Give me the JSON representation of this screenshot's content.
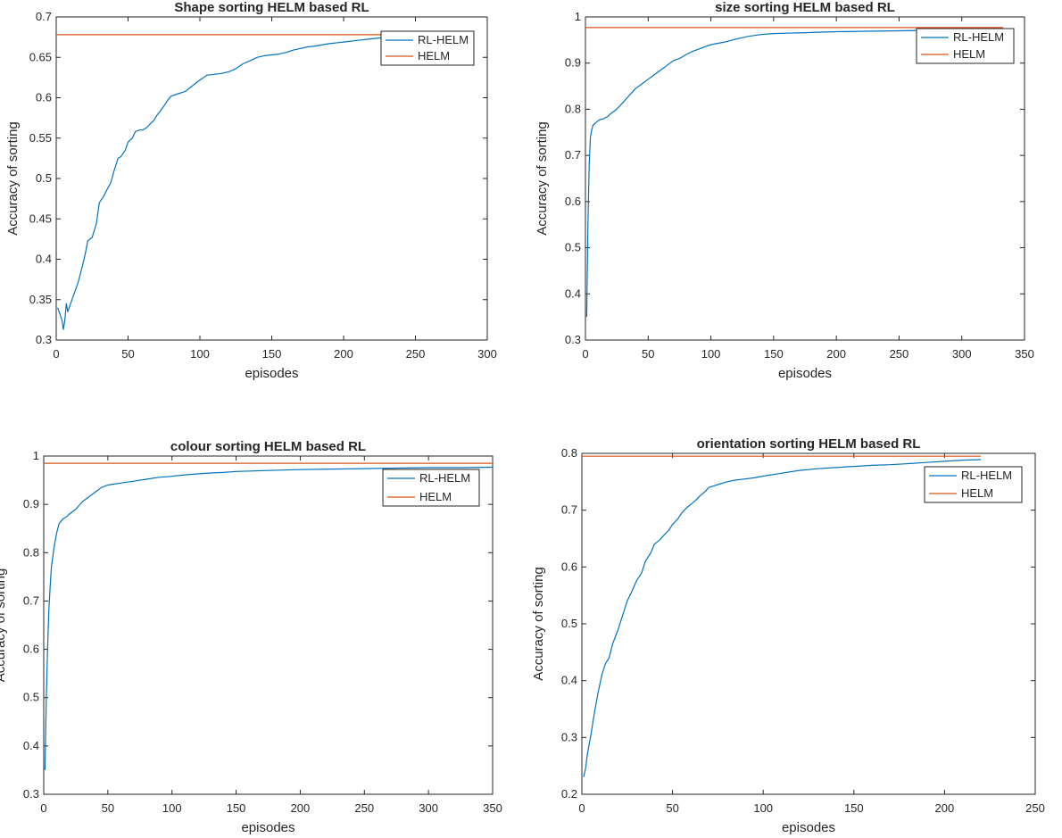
{
  "legend_entries": [
    "RL-HELM",
    "HELM"
  ],
  "colors": {
    "rl_helm": "#0072BD",
    "helm": "#D95319"
  },
  "chart_data": [
    {
      "type": "line",
      "title": "Shape sorting HELM based RL",
      "xlabel": "episodes",
      "ylabel": "Accuracy of sorting",
      "xlim": [
        0,
        300
      ],
      "ylim": [
        0.3,
        0.7
      ],
      "xticks": [
        0,
        50,
        100,
        150,
        200,
        250,
        300
      ],
      "yticks": [
        0.3,
        0.35,
        0.4,
        0.45,
        0.5,
        0.55,
        0.6,
        0.65,
        0.7
      ],
      "grid": false,
      "legend_position": "top-right",
      "series": [
        {
          "name": "RL-HELM",
          "x": [
            1,
            2,
            3,
            4,
            5,
            6,
            7,
            8,
            10,
            12,
            15,
            18,
            20,
            22,
            25,
            28,
            30,
            33,
            35,
            38,
            40,
            43,
            45,
            48,
            50,
            53,
            55,
            58,
            60,
            63,
            65,
            68,
            70,
            73,
            75,
            78,
            80,
            85,
            90,
            95,
            100,
            105,
            110,
            115,
            120,
            125,
            130,
            135,
            140,
            145,
            150,
            155,
            160,
            165,
            170,
            175,
            180,
            190,
            200,
            210,
            220,
            230
          ],
          "y": [
            0.34,
            0.335,
            0.33,
            0.325,
            0.313,
            0.325,
            0.345,
            0.335,
            0.345,
            0.355,
            0.37,
            0.39,
            0.405,
            0.423,
            0.427,
            0.445,
            0.47,
            0.478,
            0.485,
            0.495,
            0.508,
            0.525,
            0.527,
            0.535,
            0.545,
            0.55,
            0.558,
            0.56,
            0.56,
            0.563,
            0.567,
            0.572,
            0.578,
            0.585,
            0.59,
            0.598,
            0.602,
            0.605,
            0.608,
            0.615,
            0.622,
            0.628,
            0.629,
            0.63,
            0.632,
            0.636,
            0.642,
            0.646,
            0.65,
            0.652,
            0.653,
            0.654,
            0.656,
            0.659,
            0.661,
            0.663,
            0.664,
            0.667,
            0.669,
            0.671,
            0.673,
            0.675
          ]
        },
        {
          "name": "HELM",
          "x": [
            0,
            230
          ],
          "y": [
            0.678,
            0.678
          ]
        }
      ]
    },
    {
      "type": "line",
      "title": "size sorting HELM based RL",
      "xlabel": "episodes",
      "ylabel": "Accuracy of sorting",
      "xlim": [
        0,
        350
      ],
      "ylim": [
        0.3,
        1
      ],
      "xticks": [
        0,
        50,
        100,
        150,
        200,
        250,
        300,
        350
      ],
      "yticks": [
        0.3,
        0.4,
        0.5,
        0.6,
        0.7,
        0.8,
        0.9,
        1
      ],
      "grid": false,
      "legend_position": "top-right",
      "series": [
        {
          "name": "RL-HELM",
          "x": [
            1,
            2,
            3,
            4,
            5,
            6,
            8,
            10,
            12,
            15,
            18,
            20,
            25,
            30,
            35,
            40,
            45,
            50,
            55,
            60,
            65,
            70,
            75,
            80,
            85,
            90,
            95,
            100,
            110,
            120,
            130,
            140,
            150,
            175,
            200,
            225,
            250,
            275,
            300,
            333
          ],
          "y": [
            0.35,
            0.55,
            0.68,
            0.74,
            0.755,
            0.765,
            0.77,
            0.775,
            0.778,
            0.78,
            0.785,
            0.79,
            0.8,
            0.815,
            0.83,
            0.845,
            0.855,
            0.865,
            0.875,
            0.885,
            0.895,
            0.905,
            0.91,
            0.918,
            0.925,
            0.93,
            0.935,
            0.94,
            0.945,
            0.952,
            0.958,
            0.962,
            0.964,
            0.966,
            0.968,
            0.969,
            0.97,
            0.971,
            0.972,
            0.972
          ]
        },
        {
          "name": "HELM",
          "x": [
            0,
            333
          ],
          "y": [
            0.977,
            0.977
          ]
        }
      ]
    },
    {
      "type": "line",
      "title": "colour sorting HELM based RL",
      "xlabel": "episodes",
      "ylabel": "Accuracy of sorting",
      "xlim": [
        0,
        350
      ],
      "ylim": [
        0.3,
        1
      ],
      "xticks": [
        0,
        50,
        100,
        150,
        200,
        250,
        300,
        350
      ],
      "yticks": [
        0.3,
        0.4,
        0.5,
        0.6,
        0.7,
        0.8,
        0.9,
        1
      ],
      "grid": false,
      "legend_position": "top-right",
      "series": [
        {
          "name": "RL-HELM",
          "x": [
            1,
            2,
            3,
            4,
            5,
            6,
            8,
            10,
            12,
            15,
            18,
            20,
            25,
            30,
            35,
            40,
            45,
            50,
            55,
            60,
            70,
            80,
            90,
            100,
            110,
            120,
            130,
            140,
            150,
            175,
            200,
            225,
            250,
            275,
            300,
            325,
            350
          ],
          "y": [
            0.35,
            0.5,
            0.6,
            0.68,
            0.73,
            0.77,
            0.81,
            0.84,
            0.86,
            0.87,
            0.875,
            0.88,
            0.89,
            0.905,
            0.915,
            0.925,
            0.935,
            0.94,
            0.942,
            0.944,
            0.948,
            0.952,
            0.956,
            0.958,
            0.961,
            0.963,
            0.965,
            0.966,
            0.968,
            0.97,
            0.972,
            0.973,
            0.974,
            0.975,
            0.976,
            0.976,
            0.977
          ]
        },
        {
          "name": "HELM",
          "x": [
            0,
            350
          ],
          "y": [
            0.985,
            0.985
          ]
        }
      ]
    },
    {
      "type": "line",
      "title": "orientation sorting HELM based RL",
      "xlabel": "episodes",
      "ylabel": "Accuracy of sorting",
      "xlim": [
        0,
        250
      ],
      "ylim": [
        0.2,
        0.8
      ],
      "xticks": [
        0,
        50,
        100,
        150,
        200,
        250
      ],
      "yticks": [
        0.2,
        0.3,
        0.4,
        0.5,
        0.6,
        0.7,
        0.8
      ],
      "grid": false,
      "legend_position": "top-right",
      "series": [
        {
          "name": "RL-HELM",
          "x": [
            1,
            2,
            3,
            5,
            7,
            9,
            11,
            13,
            15,
            17,
            20,
            23,
            25,
            28,
            30,
            33,
            35,
            38,
            40,
            43,
            45,
            48,
            50,
            53,
            55,
            58,
            60,
            63,
            65,
            68,
            70,
            75,
            80,
            85,
            90,
            95,
            100,
            110,
            120,
            130,
            140,
            150,
            160,
            170,
            180,
            190,
            200,
            210,
            220
          ],
          "y": [
            0.23,
            0.245,
            0.27,
            0.305,
            0.345,
            0.38,
            0.41,
            0.43,
            0.44,
            0.465,
            0.49,
            0.52,
            0.54,
            0.56,
            0.575,
            0.59,
            0.61,
            0.625,
            0.64,
            0.648,
            0.655,
            0.665,
            0.675,
            0.685,
            0.695,
            0.705,
            0.71,
            0.718,
            0.725,
            0.733,
            0.74,
            0.745,
            0.75,
            0.753,
            0.755,
            0.757,
            0.76,
            0.765,
            0.77,
            0.773,
            0.775,
            0.777,
            0.779,
            0.78,
            0.782,
            0.784,
            0.786,
            0.788,
            0.789
          ]
        },
        {
          "name": "HELM",
          "x": [
            0,
            220
          ],
          "y": [
            0.795,
            0.795
          ]
        }
      ]
    }
  ]
}
